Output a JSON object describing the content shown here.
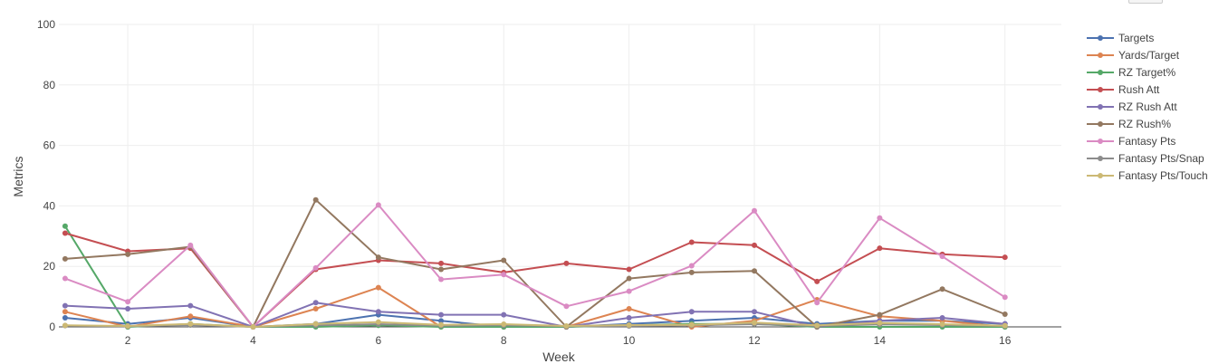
{
  "chart_data": {
    "type": "line",
    "title": "",
    "xlabel": "Week",
    "ylabel": "Metrics",
    "xlim": [
      0.9,
      16.9
    ],
    "ylim": [
      0,
      100
    ],
    "x_ticks": [
      2,
      4,
      6,
      8,
      10,
      12,
      14,
      16
    ],
    "y_ticks": [
      0,
      20,
      40,
      60,
      80,
      100
    ],
    "grid": true,
    "legend_position": "right",
    "x": [
      1,
      2,
      3,
      4,
      5,
      6,
      7,
      8,
      9,
      10,
      11,
      12,
      13,
      14,
      15,
      16
    ],
    "series": [
      {
        "name": "Targets",
        "color": "#4c72b0",
        "values": [
          3,
          1,
          3,
          0,
          1,
          4,
          2,
          0,
          0,
          1,
          2,
          3,
          1,
          2,
          2,
          1
        ]
      },
      {
        "name": "Yards/Target",
        "color": "#dd8452",
        "values": [
          5,
          0,
          3.5,
          0,
          6,
          13,
          0,
          0,
          0,
          6,
          0,
          2,
          9,
          3.5,
          2,
          0
        ]
      },
      {
        "name": "RZ Target%",
        "color": "#55a868",
        "values": [
          33.3,
          0,
          1,
          0,
          0,
          0.5,
          0,
          0,
          0,
          0.5,
          1,
          1,
          0,
          0,
          0,
          0
        ]
      },
      {
        "name": "Rush Att",
        "color": "#c44e52",
        "values": [
          31,
          25,
          26,
          0,
          19,
          22,
          21,
          18,
          21,
          19,
          28,
          27,
          15,
          26,
          24,
          23
        ]
      },
      {
        "name": "RZ Rush Att",
        "color": "#8172b3",
        "values": [
          7,
          6,
          7,
          0,
          8,
          5,
          4,
          4,
          0,
          3,
          5,
          5,
          0,
          2,
          3,
          1
        ]
      },
      {
        "name": "RZ Rush%",
        "color": "#937860",
        "values": [
          22.5,
          24,
          26.5,
          0,
          42,
          23,
          19,
          22,
          0,
          16,
          18,
          18.5,
          0,
          4,
          12.5,
          4.2
        ]
      },
      {
        "name": "Fantasy Pts",
        "color": "#da8bc3",
        "values": [
          16,
          8.3,
          27,
          0,
          19.5,
          40.3,
          15.7,
          17.3,
          6.8,
          11.8,
          20.2,
          38.4,
          8,
          36,
          23.3,
          9.8
        ]
      },
      {
        "name": "Fantasy Pts/Snap",
        "color": "#8c8c8c",
        "values": [
          0.4,
          0.2,
          0.6,
          0,
          0.5,
          0.9,
          0.4,
          0.5,
          0.2,
          0.3,
          0.5,
          0.9,
          0.3,
          0.8,
          0.6,
          0.3
        ]
      },
      {
        "name": "Fantasy Pts/Touch",
        "color": "#ccb974",
        "values": [
          0.5,
          0.3,
          1,
          0,
          1,
          1.6,
          0.7,
          0.9,
          0.3,
          0.6,
          0.7,
          1.4,
          0.5,
          1.3,
          0.9,
          0.4
        ]
      }
    ]
  }
}
